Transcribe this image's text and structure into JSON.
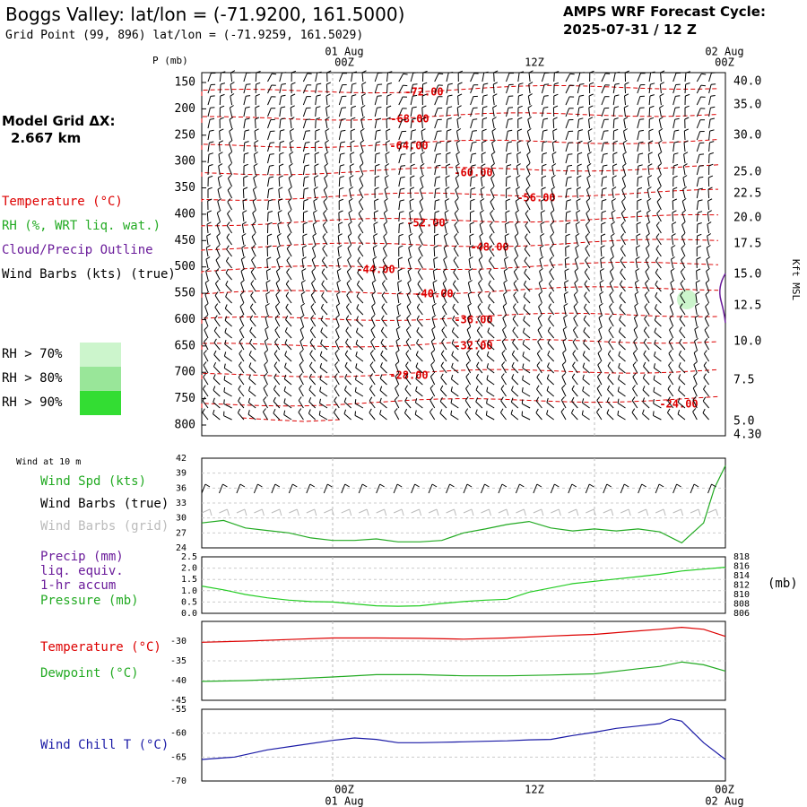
{
  "header": {
    "title": "Boggs Valley:  lat/lon = (-71.9200, 161.5000)",
    "subtitle": "Grid Point (99, 896) lat/lon = (-71.9259, 161.5029)",
    "cycle_line1": "AMPS WRF Forecast Cycle:",
    "cycle_line2": "2025-07-31 / 12  Z",
    "grid_label": "Model Grid ΔX:",
    "grid_value": "2.667 km"
  },
  "legend_upper": {
    "temperature": "Temperature (°C)",
    "rh": "RH (%, WRT liq. wat.)",
    "cloud": "Cloud/Precip Outline",
    "wind": "Wind Barbs (kts) (true)",
    "rh70": "RH > 70%",
    "rh80": "RH > 80%",
    "rh90": "RH > 90%"
  },
  "legend_lower": {
    "wind10m": "Wind at 10 m",
    "wind_spd": "Wind Spd (kts)",
    "barbs_true": "Wind Barbs (true)",
    "barbs_grid": "Wind Barbs (grid)",
    "precip": "Precip (mm)",
    "liq": "liq. equiv.",
    "accum": "1-hr accum",
    "pressure": "Pressure (mb)",
    "pressure_unit": "(mb)",
    "temperature": "Temperature (°C)",
    "dewpoint": "Dewpoint (°C)",
    "windchill": "Wind Chill T (°C)"
  },
  "colors": {
    "temperature": "#dd0000",
    "rh": "#22aa22",
    "cloud": "#6a1b9a",
    "pressure": "#22cc22",
    "windchill": "#1a1aa6",
    "grid": "#bbbbbb",
    "rh70": "#ccf5cc",
    "rh80": "#99e699",
    "rh90": "#33dd33"
  },
  "time_axis": {
    "labels": [
      "00Z",
      "12Z",
      "00Z"
    ],
    "dates": [
      "01 Aug",
      "02 Aug"
    ],
    "pressure_title": "P (mb)",
    "kft_title": "Kft MSL"
  },
  "chart_data": [
    {
      "type": "line",
      "name": "cross_section",
      "yaxis_left": [
        150,
        200,
        250,
        300,
        350,
        400,
        450,
        500,
        550,
        600,
        650,
        700,
        750,
        800
      ],
      "yaxis_right": [
        "40.0",
        "35.0",
        "30.0",
        "25.0",
        "22.5",
        "20.0",
        "17.5",
        "15.0",
        "12.5",
        "10.0",
        "7.5",
        "5.0",
        "4.30"
      ],
      "temperature_contours": [
        -72,
        -68,
        -64,
        -60,
        -56,
        -52,
        -48,
        -44,
        -40,
        -36,
        -32,
        -28,
        -24
      ],
      "contour_labels": [
        "-72.00",
        "-68.00",
        "-64.00",
        "-60.00",
        "-56.00",
        "-52.00",
        "-48.00",
        "-44.00",
        "-40.00",
        "-36.00",
        "-32.00",
        "-28.00",
        "-24.00"
      ]
    },
    {
      "type": "line",
      "name": "wind_speed",
      "ylim": [
        24,
        42
      ],
      "yticks": [
        24,
        27,
        30,
        33,
        36,
        39,
        42
      ],
      "x_hours": [
        0,
        2,
        4,
        6,
        8,
        10,
        12,
        14,
        16,
        18,
        20,
        22,
        24,
        26,
        28,
        30,
        32,
        34,
        36,
        38,
        40,
        42,
        44,
        46,
        47,
        48
      ],
      "values": [
        29.0,
        29.5,
        28.0,
        27.5,
        27.0,
        26.0,
        25.5,
        25.5,
        25.8,
        25.2,
        25.2,
        25.5,
        27.0,
        27.8,
        28.7,
        29.3,
        28.0,
        27.4,
        27.8,
        27.4,
        27.8,
        27.2,
        25.0,
        29.0,
        36.0,
        40.5
      ]
    },
    {
      "type": "line",
      "name": "precip_pressure",
      "precip_ylim": [
        0,
        2.5
      ],
      "precip_ticks": [
        "0.0",
        "0.5",
        "1.0",
        "1.5",
        "2.0",
        "2.5"
      ],
      "pressure_ticks": [
        "806",
        "808",
        "810",
        "812",
        "814",
        "816",
        "818"
      ],
      "pressure_ylim": [
        806,
        818
      ],
      "x_hours": [
        0,
        2,
        4,
        6,
        8,
        10,
        12,
        14,
        16,
        18,
        20,
        22,
        24,
        26,
        28,
        30,
        32,
        34,
        36,
        38,
        40,
        42,
        44,
        46,
        48
      ],
      "pressure": [
        811.8,
        811.0,
        810.0,
        809.3,
        808.8,
        808.5,
        808.4,
        808.0,
        807.6,
        807.5,
        807.6,
        808.1,
        808.5,
        808.8,
        809.0,
        810.5,
        811.4,
        812.3,
        812.8,
        813.3,
        813.8,
        814.3,
        815.0,
        815.4,
        815.8
      ]
    },
    {
      "type": "line",
      "name": "temperature_dewpoint",
      "ylim": [
        -45,
        -25
      ],
      "yticks": [
        -45,
        -40,
        -35,
        -30
      ],
      "x_hours": [
        0,
        4,
        8,
        12,
        16,
        20,
        24,
        28,
        32,
        36,
        40,
        42,
        44,
        46,
        48
      ],
      "series": [
        {
          "name": "Temperature (°C)",
          "values": [
            -30.3,
            -30.0,
            -29.6,
            -29.2,
            -29.2,
            -29.3,
            -29.5,
            -29.2,
            -28.7,
            -28.3,
            -27.4,
            -27.0,
            -26.5,
            -27.0,
            -28.8
          ]
        },
        {
          "name": "Dewpoint (°C)",
          "values": [
            -40.2,
            -40.0,
            -39.6,
            -39.1,
            -38.5,
            -38.5,
            -38.8,
            -38.8,
            -38.6,
            -38.3,
            -37.0,
            -36.4,
            -35.3,
            -36.0,
            -37.6
          ]
        }
      ]
    },
    {
      "type": "line",
      "name": "wind_chill",
      "ylim": [
        -70,
        -55
      ],
      "yticks": [
        -70,
        -65,
        -60,
        -55
      ],
      "x_hours": [
        0,
        3,
        6,
        9,
        12,
        14,
        16,
        18,
        20,
        22,
        24,
        26,
        28,
        30,
        32,
        34,
        36,
        38,
        40,
        42,
        43,
        44,
        46,
        48
      ],
      "values": [
        -65.5,
        -65.0,
        -63.5,
        -62.5,
        -61.5,
        -61.0,
        -61.3,
        -62.0,
        -62.0,
        -61.9,
        -61.8,
        -61.7,
        -61.6,
        -61.4,
        -61.3,
        -60.5,
        -59.8,
        -59.0,
        -58.5,
        -58.0,
        -57.0,
        -57.5,
        -62.0,
        -65.5
      ]
    }
  ]
}
